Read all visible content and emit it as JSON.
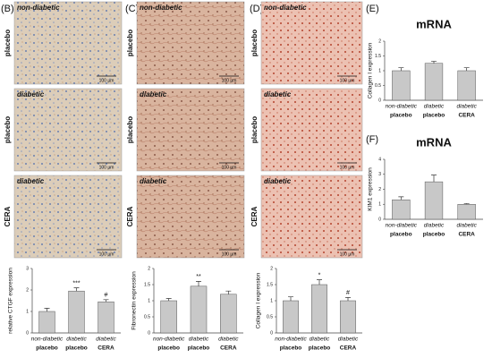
{
  "panels": [
    {
      "label": "(B)",
      "images": [
        {
          "condition": "non-diabetic",
          "treatment": "placebo",
          "scale": "100 µm"
        },
        {
          "condition": "diabetic",
          "treatment": "placebo",
          "scale": "100 µm"
        },
        {
          "condition": "diabetic",
          "treatment": "CERA",
          "scale": "100 µm"
        }
      ]
    },
    {
      "label": "(C)",
      "images": [
        {
          "condition": "non-diabetic",
          "treatment": "placebo",
          "scale": "100 µm"
        },
        {
          "condition": "diabetic",
          "treatment": "placebo",
          "scale": "100 µm"
        },
        {
          "condition": "diabetic",
          "treatment": "CERA",
          "scale": "100 µm"
        }
      ]
    },
    {
      "label": "(D)",
      "images": [
        {
          "condition": "non-diabetic",
          "treatment": "placebo",
          "scale": "100 µm"
        },
        {
          "condition": "diabetic",
          "treatment": "placebo",
          "scale": "100 µm"
        },
        {
          "condition": "diabetic",
          "treatment": "CERA",
          "scale": "100 µm"
        }
      ]
    },
    {
      "label": "(E)"
    },
    {
      "label": "(F)"
    }
  ],
  "chart_data": [
    {
      "type": "bar",
      "ylabel": "relative CTGF expression",
      "categories": [
        "non-diabetic",
        "diabetic",
        "diabetic"
      ],
      "groups": [
        "placebo",
        "placebo",
        "CERA"
      ],
      "values": [
        1.0,
        1.95,
        1.45
      ],
      "errors": [
        0.15,
        0.15,
        0.1
      ],
      "annotations": [
        null,
        "***",
        "#"
      ],
      "color": "#c8c8c8",
      "ylim": [
        0,
        3
      ],
      "yticks": [
        0,
        1,
        2,
        3
      ]
    },
    {
      "type": "bar",
      "ylabel": "Fibronectin expression",
      "categories": [
        "non-diabetic",
        "diabetic",
        "diabetic"
      ],
      "groups": [
        "placebo",
        "placebo",
        "CERA"
      ],
      "values": [
        1.0,
        1.45,
        1.2
      ],
      "errors": [
        0.07,
        0.15,
        0.1
      ],
      "annotations": [
        null,
        "**",
        null
      ],
      "color": "#c8c8c8",
      "ylim": [
        0,
        2
      ],
      "yticks": [
        0,
        0.5,
        1,
        1.5,
        2
      ]
    },
    {
      "type": "bar",
      "ylabel": "Collagen I expression",
      "categories": [
        "non-diabetic",
        "diabetic",
        "diabetic"
      ],
      "groups": [
        "placebo",
        "placebo",
        "CERA"
      ],
      "values": [
        1.0,
        1.5,
        1.0
      ],
      "errors": [
        0.12,
        0.15,
        0.1
      ],
      "annotations": [
        null,
        "*",
        "#"
      ],
      "color": "#c8c8c8",
      "ylim": [
        0,
        2
      ],
      "yticks": [
        0,
        0.5,
        1,
        1.5,
        2
      ]
    },
    {
      "type": "bar",
      "title": "mRNA",
      "ylabel": "Collagen I expression",
      "categories": [
        "non-diabetic",
        "diabetic",
        "diabetic"
      ],
      "groups": [
        "placebo",
        "placebo",
        "CERA"
      ],
      "values": [
        1.0,
        1.25,
        1.0
      ],
      "errors": [
        0.1,
        0.07,
        0.1
      ],
      "annotations": [
        null,
        null,
        null
      ],
      "color": "#c8c8c8",
      "ylim": [
        0,
        2
      ],
      "yticks": [
        0,
        0.5,
        1,
        1.5,
        2
      ]
    },
    {
      "type": "bar",
      "title": "mRNA",
      "ylabel": "KIM1 expression",
      "categories": [
        "non-diabetic",
        "diabetic",
        "diabetic"
      ],
      "groups": [
        "placebo",
        "placebo",
        "CERA"
      ],
      "values": [
        1.3,
        2.5,
        1.0
      ],
      "errors": [
        0.2,
        0.45,
        0.05
      ],
      "annotations": [
        null,
        null,
        null
      ],
      "color": "#c8c8c8",
      "ylim": [
        0,
        4
      ],
      "yticks": [
        0,
        1,
        2,
        3,
        4
      ]
    }
  ]
}
